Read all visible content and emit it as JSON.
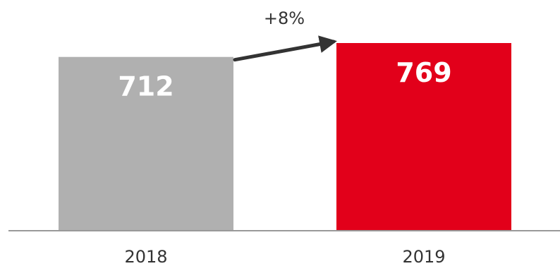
{
  "chart_data": {
    "type": "bar",
    "title": "",
    "xlabel": "",
    "ylabel": "",
    "categories": [
      "2018",
      "2019"
    ],
    "values": [
      712,
      769
    ],
    "data_labels": [
      "712",
      "769"
    ],
    "bar_colors": [
      "#b0b0b0",
      "#e2001a"
    ],
    "ylim": [
      0,
      769
    ],
    "grid": false,
    "legend": "none",
    "annotation": {
      "text": "+8%",
      "from": "2018",
      "to": "2019",
      "arrow_color": "#333333"
    }
  },
  "colors": {
    "baseline": "#999999",
    "data_label": "#ffffff",
    "text": "#333333"
  }
}
